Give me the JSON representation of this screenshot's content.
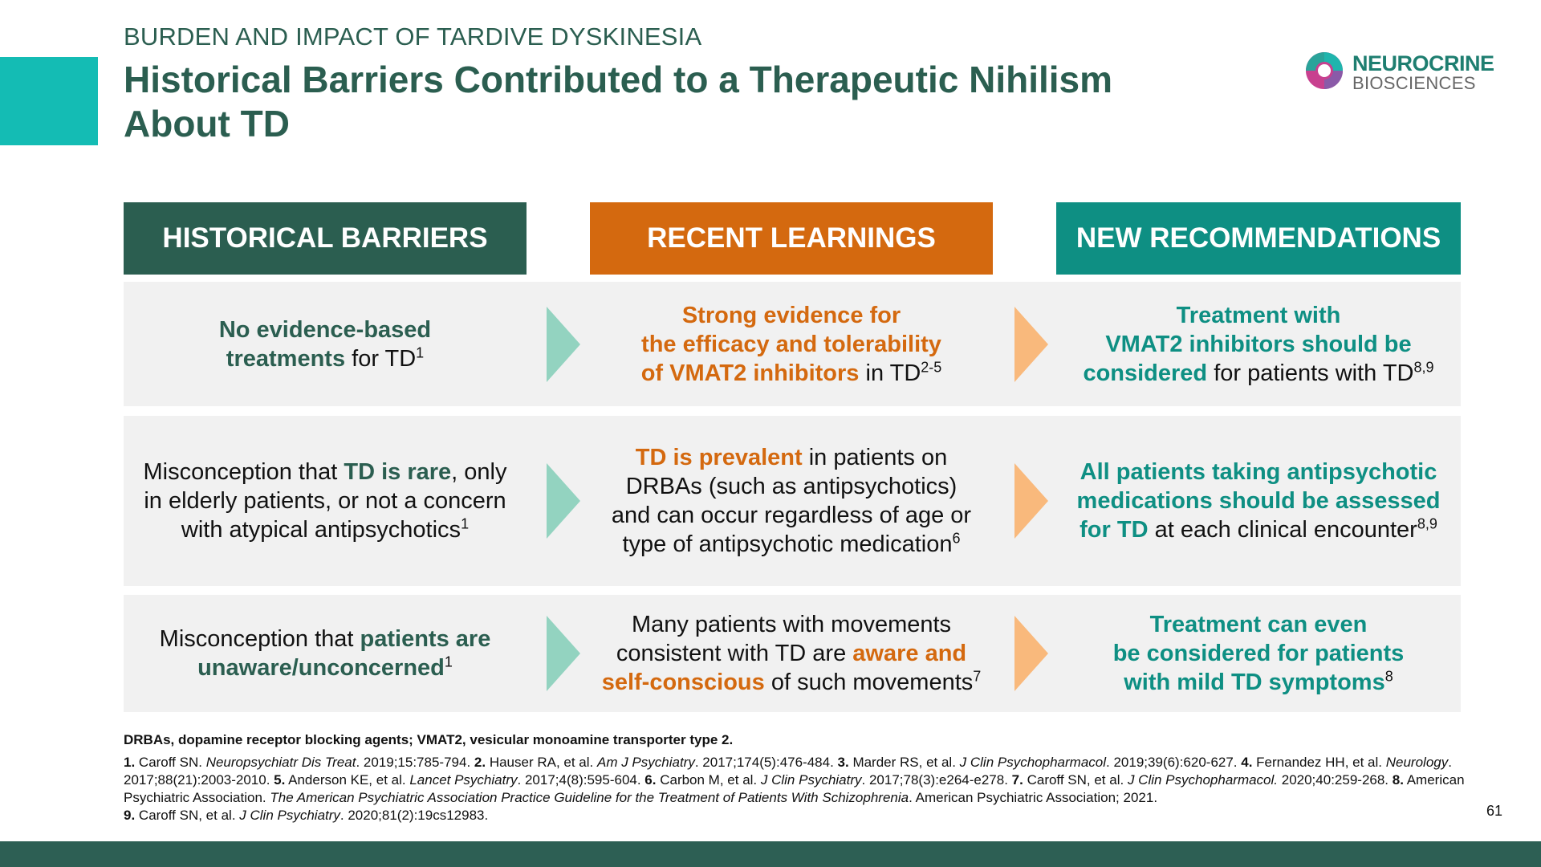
{
  "header": {
    "kicker": "BURDEN AND IMPACT OF TARDIVE DYSKINESIA",
    "title": "Historical Barriers Contributed to a Therapeutic Nihilism About TD",
    "logo": {
      "name": "NEUROCRINE",
      "sub": "BIOSCIENCES"
    }
  },
  "colors": {
    "dark_green": "#2b5e50",
    "orange": "#d4690f",
    "teal": "#0e8f83",
    "accent": "#14bcb4"
  },
  "columns": [
    {
      "label": "HISTORICAL BARRIERS",
      "color": "#2b5e50"
    },
    {
      "label": "RECENT LEARNINGS",
      "color": "#d4690f"
    },
    {
      "label": "NEW RECOMMENDATIONS",
      "color": "#0e8f83"
    }
  ],
  "rows": [
    [
      [
        [
          [
            "hl",
            "No evidence-based"
          ]
        ],
        [
          [
            "hl",
            "treatments"
          ],
          [
            "n",
            " for TD"
          ],
          [
            "sup",
            "1"
          ]
        ]
      ],
      [
        [
          [
            "hl",
            "Strong evidence for"
          ]
        ],
        [
          [
            "hl",
            "the efficacy and tolerability"
          ]
        ],
        [
          [
            "hl",
            "of VMAT2 inhibitors"
          ],
          [
            "n",
            " in TD"
          ],
          [
            "sup",
            "2-5"
          ]
        ]
      ],
      [
        [
          [
            "hl",
            "Treatment with"
          ]
        ],
        [
          [
            "hl",
            "VMAT2 inhibitors should be"
          ]
        ],
        [
          [
            "hl",
            "considered"
          ],
          [
            "n",
            " for patients with TD"
          ],
          [
            "sup",
            "8,9"
          ]
        ]
      ]
    ],
    [
      [
        [
          [
            "n",
            "Misconception that "
          ],
          [
            "hl",
            "TD is rare"
          ],
          [
            "n",
            ", only"
          ]
        ],
        [
          [
            "n",
            "in elderly patients, or not a concern"
          ]
        ],
        [
          [
            "n",
            "with atypical antipsychotics"
          ],
          [
            "sup",
            "1"
          ]
        ]
      ],
      [
        [
          [
            "hl",
            "TD is prevalent"
          ],
          [
            "n",
            " in patients on"
          ]
        ],
        [
          [
            "n",
            "DRBAs (such as antipsychotics)"
          ]
        ],
        [
          [
            "n",
            "and can occur regardless of age or"
          ]
        ],
        [
          [
            "n",
            "type of antipsychotic medication"
          ],
          [
            "sup",
            "6"
          ]
        ]
      ],
      [
        [
          [
            "hl",
            "All patients taking antipsychotic"
          ]
        ],
        [
          [
            "hl",
            "medications should be assessed"
          ]
        ],
        [
          [
            "hl",
            "for TD"
          ],
          [
            "n",
            " at each clinical encounter"
          ],
          [
            "sup",
            "8,9"
          ]
        ]
      ]
    ],
    [
      [
        [
          [
            "n",
            "Misconception that "
          ],
          [
            "hl",
            "patients are"
          ]
        ],
        [
          [
            "hl",
            "unaware/unconcerned"
          ],
          [
            "sup",
            "1"
          ]
        ]
      ],
      [
        [
          [
            "n",
            "Many patients with movements"
          ]
        ],
        [
          [
            "n",
            "consistent with TD are "
          ],
          [
            "hl",
            "aware and"
          ]
        ],
        [
          [
            "hl",
            "self-conscious"
          ],
          [
            "n",
            " of such movements"
          ],
          [
            "sup",
            "7"
          ]
        ]
      ],
      [
        [
          [
            "hl",
            "Treatment can even"
          ]
        ],
        [
          [
            "hl",
            "be considered for patients"
          ]
        ],
        [
          [
            "hl",
            "with mild TD symptoms"
          ],
          [
            "sup",
            "8"
          ]
        ]
      ]
    ]
  ],
  "footnote": {
    "abbreviations": "DRBAs, dopamine receptor blocking agents; VMAT2, vesicular monoamine transporter type 2.",
    "references": [
      [
        [
          "b",
          "1."
        ],
        [
          "n",
          " Caroff SN. "
        ],
        [
          "i",
          "Neuropsychiatr Dis Treat"
        ],
        [
          "n",
          ". 2019;15:785-794. "
        ],
        [
          "b",
          "2."
        ],
        [
          "n",
          " Hauser RA, et al. "
        ],
        [
          "i",
          "Am J Psychiatry"
        ],
        [
          "n",
          ". 2017;174(5):476-484. "
        ],
        [
          "b",
          "3."
        ],
        [
          "n",
          " Marder RS, et al. "
        ],
        [
          "i",
          "J Clin Psychopharmacol"
        ],
        [
          "n",
          ". 2019;39(6):620-627. "
        ],
        [
          "b",
          "4."
        ],
        [
          "n",
          " Fernandez HH, et al. "
        ],
        [
          "i",
          "Neurology"
        ],
        [
          "n",
          ". 2017;88(21):2003-2010. "
        ],
        [
          "b",
          "5."
        ],
        [
          "n",
          " Anderson KE, et al. "
        ],
        [
          "i",
          "Lancet Psychiatry"
        ],
        [
          "n",
          ". 2017;4(8):595-604. "
        ],
        [
          "b",
          "6."
        ],
        [
          "n",
          " Carbon M, et al. "
        ],
        [
          "i",
          "J Clin Psychiatry"
        ],
        [
          "n",
          ". 2017;78(3):e264-e278. "
        ],
        [
          "b",
          "7."
        ],
        [
          "n",
          " Caroff SN, et al. "
        ],
        [
          "i",
          "J Clin Psychopharmacol."
        ],
        [
          "n",
          " 2020;40:259-268. "
        ],
        [
          "b",
          "8."
        ],
        [
          "n",
          " American Psychiatric Association. "
        ],
        [
          "i",
          "The American Psychiatric Association Practice Guideline for the Treatment of Patients With Schizophrenia"
        ],
        [
          "n",
          ". American Psychiatric Association; 2021. "
        ],
        [
          "br",
          ""
        ],
        [
          "b",
          "9."
        ],
        [
          "n",
          " Caroff SN, et al. "
        ],
        [
          "i",
          "J Clin Psychiatry"
        ],
        [
          "n",
          ". 2020;81(2):19cs12983."
        ]
      ]
    ]
  },
  "page_number": "61"
}
